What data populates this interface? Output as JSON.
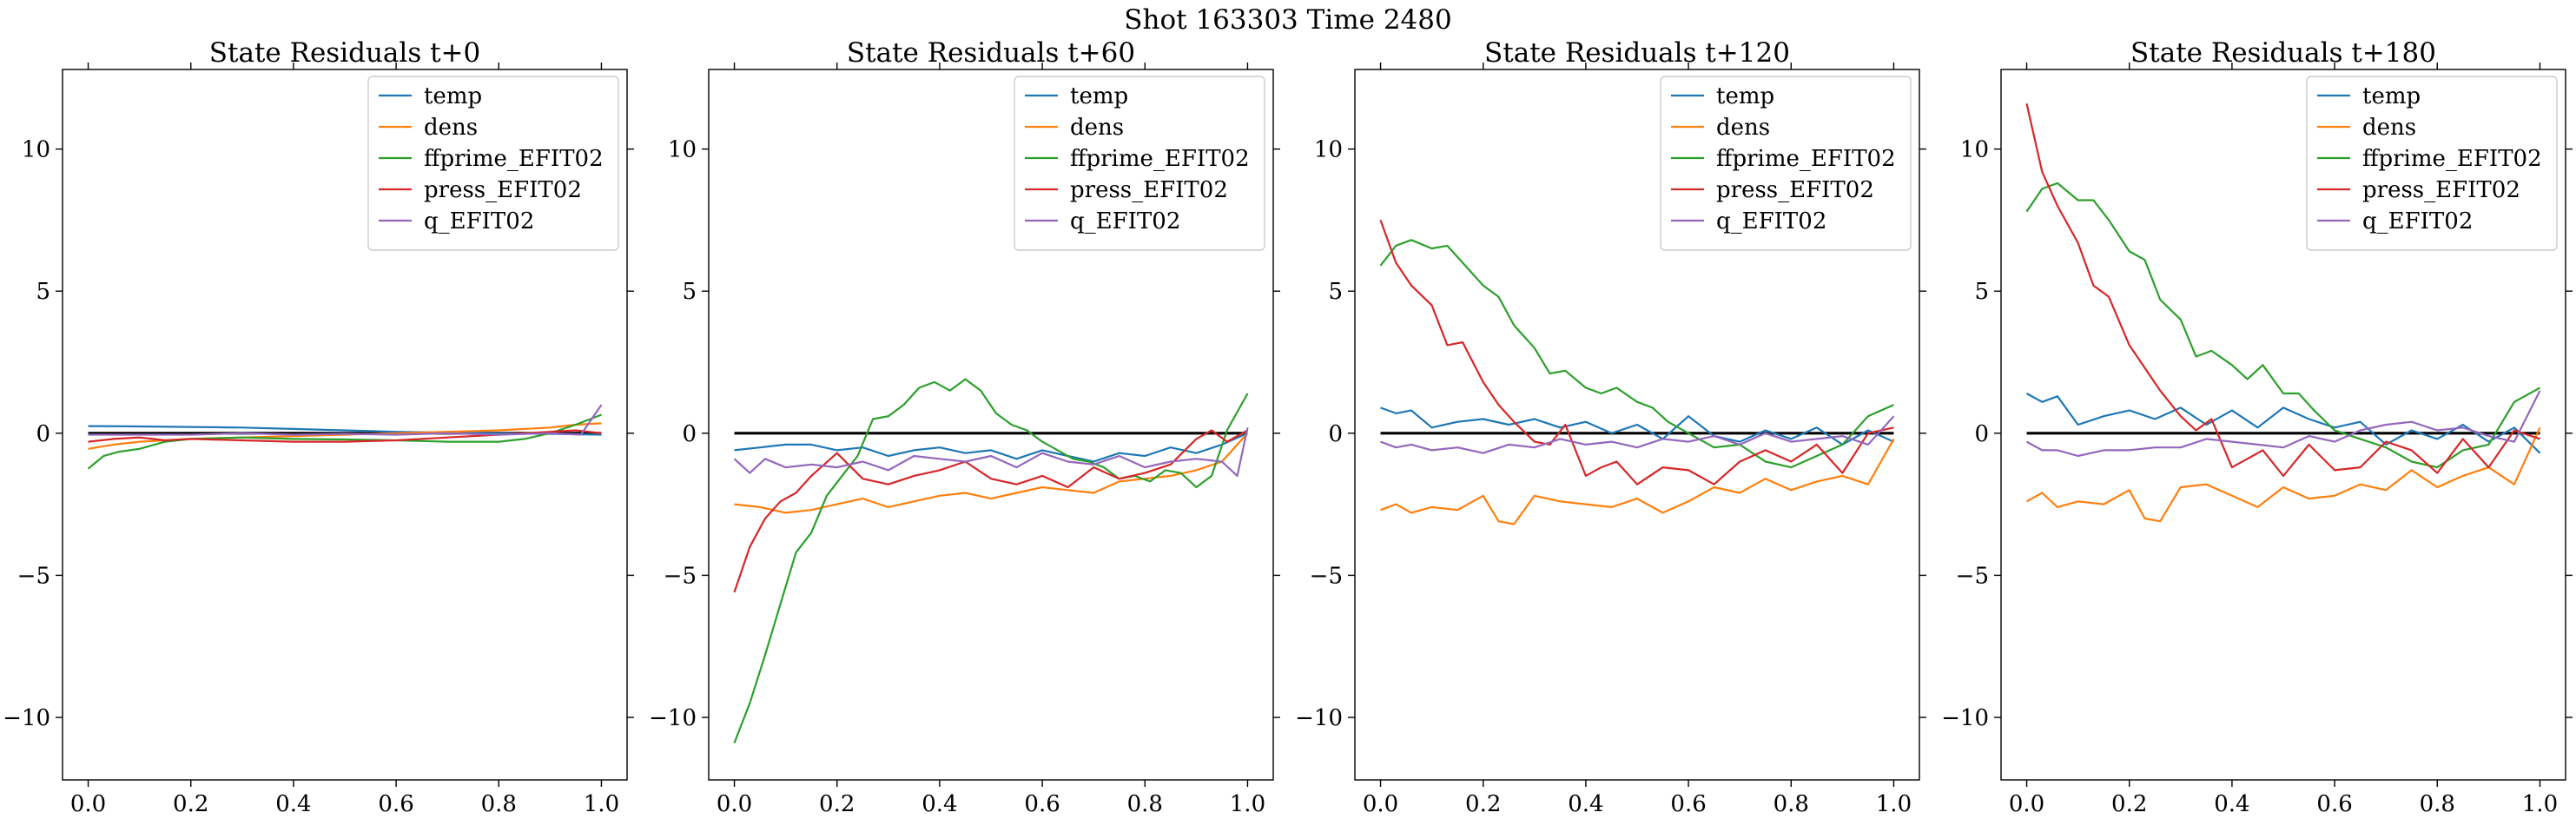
{
  "suptitle": "Shot 163303   Time 2480",
  "colors": {
    "temp": "#1f77b4",
    "dens": "#ff7f0e",
    "ffprime_EFIT02": "#2ca02c",
    "press_EFIT02": "#d62728",
    "q_EFIT02": "#9467bd",
    "zero_line": "#000000"
  },
  "chart_data": [
    {
      "type": "line",
      "title": "State Residuals t+0",
      "xlim": [
        -0.05,
        1.05
      ],
      "ylim": [
        -12.2,
        12.8
      ],
      "xticks": [
        "0.0",
        "0.2",
        "0.4",
        "0.6",
        "0.8",
        "1.0"
      ],
      "yticks": [
        "−10",
        "−5",
        "0",
        "5",
        "10"
      ],
      "legend": "top-right",
      "zero_line": true,
      "x": [
        0.0,
        1.0
      ],
      "series": [
        {
          "name": "temp",
          "x": [
            0.0,
            0.1,
            0.2,
            0.3,
            0.4,
            0.5,
            0.6,
            0.7,
            0.8,
            0.9,
            1.0
          ],
          "values": [
            0.25,
            0.24,
            0.22,
            0.2,
            0.15,
            0.1,
            0.05,
            0.02,
            0.0,
            -0.02,
            -0.05
          ]
        },
        {
          "name": "dens",
          "x": [
            0.0,
            0.05,
            0.1,
            0.2,
            0.3,
            0.4,
            0.5,
            0.6,
            0.7,
            0.8,
            0.9,
            0.95,
            1.0
          ],
          "values": [
            -0.55,
            -0.4,
            -0.3,
            -0.2,
            -0.15,
            -0.1,
            -0.05,
            0.0,
            0.05,
            0.1,
            0.2,
            0.3,
            0.35
          ]
        },
        {
          "name": "ffprime_EFIT02",
          "x": [
            0.0,
            0.03,
            0.06,
            0.1,
            0.15,
            0.2,
            0.3,
            0.4,
            0.5,
            0.6,
            0.7,
            0.8,
            0.85,
            0.9,
            0.95,
            1.0
          ],
          "values": [
            -1.25,
            -0.8,
            -0.65,
            -0.55,
            -0.3,
            -0.2,
            -0.15,
            -0.2,
            -0.22,
            -0.25,
            -0.3,
            -0.3,
            -0.2,
            0.0,
            0.3,
            0.65
          ]
        },
        {
          "name": "press_EFIT02",
          "x": [
            0.0,
            0.05,
            0.1,
            0.15,
            0.2,
            0.3,
            0.4,
            0.5,
            0.6,
            0.7,
            0.8,
            0.9,
            0.95,
            1.0
          ],
          "values": [
            -0.3,
            -0.2,
            -0.15,
            -0.25,
            -0.2,
            -0.25,
            -0.3,
            -0.3,
            -0.25,
            -0.15,
            -0.05,
            0.05,
            0.1,
            0.0
          ]
        },
        {
          "name": "q_EFIT02",
          "x": [
            0.0,
            0.1,
            0.2,
            0.3,
            0.4,
            0.5,
            0.6,
            0.7,
            0.8,
            0.9,
            0.96,
            1.0
          ],
          "values": [
            -0.05,
            -0.05,
            -0.05,
            0.0,
            -0.05,
            -0.02,
            -0.05,
            0.0,
            -0.05,
            0.0,
            -0.05,
            1.0
          ]
        }
      ]
    },
    {
      "type": "line",
      "title": "State Residuals t+60",
      "xlim": [
        -0.05,
        1.05
      ],
      "ylim": [
        -12.2,
        12.8
      ],
      "xticks": [
        "0.0",
        "0.2",
        "0.4",
        "0.6",
        "0.8",
        "1.0"
      ],
      "yticks": [
        "−10",
        "−5",
        "0",
        "5",
        "10"
      ],
      "legend": "top-right",
      "zero_line": true,
      "x": [
        0.0,
        1.0
      ],
      "series": [
        {
          "name": "temp",
          "x": [
            0.0,
            0.05,
            0.1,
            0.15,
            0.2,
            0.25,
            0.3,
            0.35,
            0.4,
            0.45,
            0.5,
            0.55,
            0.6,
            0.65,
            0.7,
            0.75,
            0.8,
            0.85,
            0.9,
            0.95,
            1.0
          ],
          "values": [
            -0.6,
            -0.5,
            -0.4,
            -0.4,
            -0.6,
            -0.5,
            -0.8,
            -0.6,
            -0.5,
            -0.7,
            -0.6,
            -0.9,
            -0.6,
            -0.8,
            -1.0,
            -0.7,
            -0.8,
            -0.5,
            -0.7,
            -0.4,
            0.0
          ]
        },
        {
          "name": "dens",
          "x": [
            0.0,
            0.05,
            0.1,
            0.15,
            0.2,
            0.25,
            0.3,
            0.35,
            0.4,
            0.45,
            0.5,
            0.55,
            0.6,
            0.65,
            0.7,
            0.75,
            0.8,
            0.85,
            0.9,
            0.95,
            1.0
          ],
          "values": [
            -2.5,
            -2.6,
            -2.8,
            -2.7,
            -2.5,
            -2.3,
            -2.6,
            -2.4,
            -2.2,
            -2.1,
            -2.3,
            -2.1,
            -1.9,
            -2.0,
            -2.1,
            -1.7,
            -1.6,
            -1.5,
            -1.3,
            -1.0,
            0.0
          ]
        },
        {
          "name": "ffprime_EFIT02",
          "x": [
            0.0,
            0.03,
            0.06,
            0.09,
            0.12,
            0.15,
            0.18,
            0.21,
            0.24,
            0.27,
            0.3,
            0.33,
            0.36,
            0.39,
            0.42,
            0.45,
            0.48,
            0.51,
            0.54,
            0.57,
            0.6,
            0.63,
            0.66,
            0.69,
            0.72,
            0.75,
            0.78,
            0.81,
            0.84,
            0.87,
            0.9,
            0.93,
            0.96,
            1.0
          ],
          "values": [
            -10.9,
            -9.5,
            -7.8,
            -6.0,
            -4.2,
            -3.5,
            -2.2,
            -1.5,
            -0.8,
            0.5,
            0.6,
            1.0,
            1.6,
            1.8,
            1.5,
            1.9,
            1.5,
            0.7,
            0.3,
            0.1,
            -0.3,
            -0.6,
            -0.9,
            -1.0,
            -1.2,
            -1.6,
            -1.5,
            -1.7,
            -1.3,
            -1.4,
            -1.9,
            -1.5,
            0.1,
            1.4
          ]
        },
        {
          "name": "press_EFIT02",
          "x": [
            0.0,
            0.03,
            0.06,
            0.09,
            0.12,
            0.15,
            0.2,
            0.25,
            0.3,
            0.35,
            0.4,
            0.45,
            0.5,
            0.55,
            0.6,
            0.65,
            0.7,
            0.75,
            0.8,
            0.85,
            0.9,
            0.93,
            0.96,
            1.0
          ],
          "values": [
            -5.6,
            -4.0,
            -3.0,
            -2.4,
            -2.1,
            -1.5,
            -0.7,
            -1.6,
            -1.8,
            -1.5,
            -1.3,
            -1.0,
            -1.6,
            -1.8,
            -1.5,
            -1.9,
            -1.2,
            -1.6,
            -1.4,
            -1.1,
            -0.2,
            0.1,
            -0.3,
            0.1
          ]
        },
        {
          "name": "q_EFIT02",
          "x": [
            0.0,
            0.03,
            0.06,
            0.1,
            0.15,
            0.2,
            0.25,
            0.3,
            0.35,
            0.4,
            0.45,
            0.5,
            0.55,
            0.6,
            0.65,
            0.7,
            0.75,
            0.8,
            0.85,
            0.9,
            0.95,
            0.98,
            1.0
          ],
          "values": [
            -0.9,
            -1.4,
            -0.9,
            -1.2,
            -1.1,
            -1.2,
            -1.0,
            -1.3,
            -0.8,
            -0.9,
            -1.0,
            -0.8,
            -1.2,
            -0.7,
            -1.0,
            -1.1,
            -0.8,
            -1.2,
            -1.0,
            -0.9,
            -1.0,
            -1.5,
            0.2
          ]
        }
      ]
    },
    {
      "type": "line",
      "title": "State Residuals t+120",
      "xlim": [
        -0.05,
        1.05
      ],
      "ylim": [
        -12.2,
        12.8
      ],
      "xticks": [
        "0.0",
        "0.2",
        "0.4",
        "0.6",
        "0.8",
        "1.0"
      ],
      "yticks": [
        "−10",
        "−5",
        "0",
        "5",
        "10"
      ],
      "legend": "top-right",
      "zero_line": true,
      "x": [
        0.0,
        1.0
      ],
      "series": [
        {
          "name": "temp",
          "x": [
            0.0,
            0.03,
            0.06,
            0.1,
            0.15,
            0.2,
            0.25,
            0.3,
            0.35,
            0.4,
            0.45,
            0.5,
            0.55,
            0.6,
            0.65,
            0.7,
            0.75,
            0.8,
            0.85,
            0.9,
            0.95,
            1.0
          ],
          "values": [
            0.9,
            0.7,
            0.8,
            0.2,
            0.4,
            0.5,
            0.3,
            0.5,
            0.2,
            0.4,
            0.0,
            0.3,
            -0.2,
            0.6,
            -0.1,
            -0.3,
            0.1,
            -0.2,
            0.2,
            -0.4,
            0.1,
            -0.3
          ]
        },
        {
          "name": "dens",
          "x": [
            0.0,
            0.03,
            0.06,
            0.1,
            0.15,
            0.2,
            0.23,
            0.26,
            0.3,
            0.35,
            0.4,
            0.45,
            0.5,
            0.55,
            0.6,
            0.65,
            0.7,
            0.75,
            0.8,
            0.85,
            0.9,
            0.95,
            1.0
          ],
          "values": [
            -2.7,
            -2.5,
            -2.8,
            -2.6,
            -2.7,
            -2.2,
            -3.1,
            -3.2,
            -2.2,
            -2.4,
            -2.5,
            -2.6,
            -2.3,
            -2.8,
            -2.4,
            -1.9,
            -2.1,
            -1.6,
            -2.0,
            -1.7,
            -1.5,
            -1.8,
            -0.2
          ]
        },
        {
          "name": "ffprime_EFIT02",
          "x": [
            0.0,
            0.03,
            0.06,
            0.1,
            0.13,
            0.16,
            0.2,
            0.23,
            0.26,
            0.3,
            0.33,
            0.36,
            0.4,
            0.43,
            0.46,
            0.5,
            0.53,
            0.56,
            0.6,
            0.65,
            0.7,
            0.75,
            0.8,
            0.85,
            0.9,
            0.95,
            1.0
          ],
          "values": [
            5.9,
            6.6,
            6.8,
            6.5,
            6.6,
            6.0,
            5.2,
            4.8,
            3.8,
            3.0,
            2.1,
            2.2,
            1.6,
            1.4,
            1.6,
            1.1,
            0.9,
            0.4,
            0.0,
            -0.5,
            -0.4,
            -1.0,
            -1.2,
            -0.8,
            -0.4,
            0.6,
            1.0
          ]
        },
        {
          "name": "press_EFIT02",
          "x": [
            0.0,
            0.03,
            0.06,
            0.1,
            0.13,
            0.16,
            0.2,
            0.23,
            0.26,
            0.3,
            0.33,
            0.36,
            0.4,
            0.43,
            0.46,
            0.5,
            0.55,
            0.6,
            0.65,
            0.7,
            0.75,
            0.8,
            0.85,
            0.9,
            0.95,
            1.0
          ],
          "values": [
            7.5,
            6.0,
            5.2,
            4.5,
            3.1,
            3.2,
            1.8,
            1.0,
            0.4,
            -0.3,
            -0.4,
            0.3,
            -1.5,
            -1.2,
            -1.0,
            -1.8,
            -1.2,
            -1.3,
            -1.8,
            -1.0,
            -0.6,
            -1.0,
            -0.4,
            -1.4,
            0.0,
            0.2
          ]
        },
        {
          "name": "q_EFIT02",
          "x": [
            0.0,
            0.03,
            0.06,
            0.1,
            0.15,
            0.2,
            0.25,
            0.3,
            0.35,
            0.4,
            0.45,
            0.5,
            0.55,
            0.6,
            0.65,
            0.7,
            0.75,
            0.8,
            0.85,
            0.9,
            0.95,
            1.0
          ],
          "values": [
            -0.3,
            -0.5,
            -0.4,
            -0.6,
            -0.5,
            -0.7,
            -0.4,
            -0.5,
            -0.2,
            -0.4,
            -0.3,
            -0.5,
            -0.2,
            -0.3,
            -0.1,
            -0.4,
            0.0,
            -0.3,
            -0.2,
            -0.1,
            -0.4,
            0.6
          ]
        }
      ]
    },
    {
      "type": "line",
      "title": "State Residuals t+180",
      "xlim": [
        -0.05,
        1.05
      ],
      "ylim": [
        -12.2,
        12.8
      ],
      "xticks": [
        "0.0",
        "0.2",
        "0.4",
        "0.6",
        "0.8",
        "1.0"
      ],
      "yticks": [
        "−10",
        "−5",
        "0",
        "5",
        "10"
      ],
      "legend": "top-right",
      "zero_line": true,
      "x": [
        0.0,
        1.0
      ],
      "series": [
        {
          "name": "temp",
          "x": [
            0.0,
            0.03,
            0.06,
            0.1,
            0.15,
            0.2,
            0.25,
            0.3,
            0.35,
            0.4,
            0.45,
            0.5,
            0.55,
            0.6,
            0.65,
            0.7,
            0.75,
            0.8,
            0.85,
            0.9,
            0.95,
            1.0
          ],
          "values": [
            1.4,
            1.1,
            1.3,
            0.3,
            0.6,
            0.8,
            0.5,
            0.9,
            0.3,
            0.8,
            0.2,
            0.9,
            0.5,
            0.2,
            0.4,
            -0.4,
            0.1,
            -0.2,
            0.3,
            -0.3,
            0.2,
            -0.7
          ]
        },
        {
          "name": "dens",
          "x": [
            0.0,
            0.03,
            0.06,
            0.1,
            0.15,
            0.2,
            0.23,
            0.26,
            0.3,
            0.35,
            0.4,
            0.45,
            0.5,
            0.55,
            0.6,
            0.65,
            0.7,
            0.75,
            0.8,
            0.85,
            0.9,
            0.95,
            1.0
          ],
          "values": [
            -2.4,
            -2.1,
            -2.6,
            -2.4,
            -2.5,
            -2.0,
            -3.0,
            -3.1,
            -1.9,
            -1.8,
            -2.2,
            -2.6,
            -1.9,
            -2.3,
            -2.2,
            -1.8,
            -2.0,
            -1.3,
            -1.9,
            -1.5,
            -1.2,
            -1.8,
            0.2
          ]
        },
        {
          "name": "ffprime_EFIT02",
          "x": [
            0.0,
            0.03,
            0.06,
            0.1,
            0.13,
            0.16,
            0.2,
            0.23,
            0.26,
            0.3,
            0.33,
            0.36,
            0.4,
            0.43,
            0.46,
            0.5,
            0.53,
            0.56,
            0.6,
            0.65,
            0.7,
            0.75,
            0.8,
            0.85,
            0.9,
            0.95,
            1.0
          ],
          "values": [
            7.8,
            8.6,
            8.8,
            8.2,
            8.2,
            7.5,
            6.4,
            6.1,
            4.7,
            4.0,
            2.7,
            2.9,
            2.4,
            1.9,
            2.4,
            1.4,
            1.4,
            0.8,
            0.1,
            -0.2,
            -0.5,
            -1.0,
            -1.2,
            -0.6,
            -0.4,
            1.1,
            1.6
          ]
        },
        {
          "name": "press_EFIT02",
          "x": [
            0.0,
            0.03,
            0.06,
            0.1,
            0.13,
            0.16,
            0.2,
            0.23,
            0.26,
            0.3,
            0.33,
            0.36,
            0.4,
            0.43,
            0.46,
            0.5,
            0.55,
            0.6,
            0.65,
            0.7,
            0.75,
            0.8,
            0.85,
            0.9,
            0.95,
            1.0
          ],
          "values": [
            11.6,
            9.2,
            8.0,
            6.7,
            5.2,
            4.8,
            3.1,
            2.3,
            1.5,
            0.6,
            0.1,
            0.5,
            -1.2,
            -0.9,
            -0.6,
            -1.5,
            -0.4,
            -1.3,
            -1.2,
            -0.3,
            -0.6,
            -1.4,
            -0.2,
            -1.2,
            0.1,
            -0.2
          ]
        },
        {
          "name": "q_EFIT02",
          "x": [
            0.0,
            0.03,
            0.06,
            0.1,
            0.15,
            0.2,
            0.25,
            0.3,
            0.35,
            0.4,
            0.45,
            0.5,
            0.55,
            0.6,
            0.65,
            0.7,
            0.75,
            0.8,
            0.85,
            0.9,
            0.95,
            1.0
          ],
          "values": [
            -0.3,
            -0.6,
            -0.6,
            -0.8,
            -0.6,
            -0.6,
            -0.5,
            -0.5,
            -0.2,
            -0.3,
            -0.4,
            -0.5,
            -0.1,
            -0.3,
            0.1,
            0.3,
            0.4,
            0.1,
            0.2,
            -0.1,
            -0.3,
            1.5
          ]
        }
      ]
    }
  ]
}
